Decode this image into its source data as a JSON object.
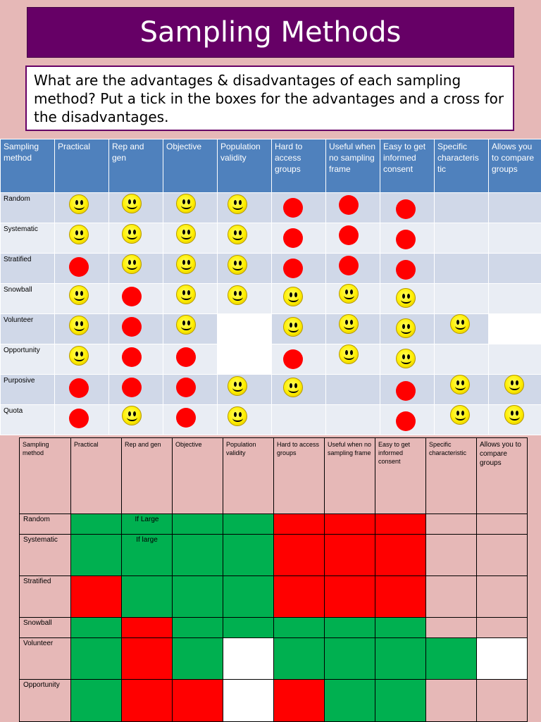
{
  "title": "Sampling Methods",
  "instructions": "What are the advantages & disadvantages of each sampling method? Put a tick in the boxes for the advantages and a cross for the disadvantages.",
  "table1": {
    "headers": [
      "Sampling method",
      "Practical",
      "Rep and gen",
      "Objective",
      "Population validity",
      "Hard to access groups",
      "Useful when no sampling frame",
      "Easy to get informed consent",
      "Specific characteris tic",
      "Allows you to compare groups"
    ],
    "rows": [
      {
        "label": "Random",
        "cells": [
          "smiley",
          "smiley",
          "smiley",
          "smiley",
          "dot",
          "dot",
          "dot",
          "",
          ""
        ]
      },
      {
        "label": "Systematic",
        "cells": [
          "smiley",
          "smiley",
          "smiley",
          "smiley",
          "dot",
          "dot",
          "dot",
          "",
          ""
        ]
      },
      {
        "label": "Stratified",
        "cells": [
          "dot",
          "smiley",
          "smiley",
          "smiley",
          "dot",
          "dot",
          "dot",
          "",
          ""
        ]
      },
      {
        "label": "Snowball",
        "cells": [
          "smiley",
          "dot",
          "smiley",
          "smiley",
          "smiley",
          "smiley",
          "smiley",
          "",
          ""
        ]
      },
      {
        "label": "Volunteer",
        "cells": [
          "smiley",
          "dot",
          "smiley",
          "blank",
          "smiley",
          "smiley",
          "smiley",
          "smiley",
          "blank"
        ]
      },
      {
        "label": "Opportunity",
        "cells": [
          "smiley",
          "dot",
          "dot",
          "blank",
          "dot",
          "smiley",
          "smiley",
          "",
          ""
        ]
      },
      {
        "label": "Purposive",
        "cells": [
          "dot",
          "dot",
          "dot",
          "smiley",
          "smiley",
          "",
          "dot",
          "smiley",
          "smiley"
        ]
      },
      {
        "label": "Quota",
        "cells": [
          "dot",
          "smiley",
          "dot",
          "smiley",
          "",
          "",
          "dot",
          "smiley",
          "smiley"
        ]
      }
    ]
  },
  "table2": {
    "headers": [
      "Sampling method",
      "Practical",
      "Rep and gen",
      "Objective",
      "Population validity",
      "Hard to access groups",
      "Useful when no sampling frame",
      "Easy to get informed consent",
      "Specific characteristic",
      "Allows you to compare groups"
    ],
    "rows": [
      {
        "label": "Random",
        "cells": [
          {
            "c": "g"
          },
          {
            "c": "g",
            "t": "If Large"
          },
          {
            "c": "g"
          },
          {
            "c": "g"
          },
          {
            "c": "r"
          },
          {
            "c": "r"
          },
          {
            "c": "r"
          },
          {
            "c": "p"
          },
          {
            "c": "p"
          }
        ]
      },
      {
        "label": "Systematic",
        "cells": [
          {
            "c": "g"
          },
          {
            "c": "g",
            "t": "If large"
          },
          {
            "c": "g"
          },
          {
            "c": "g"
          },
          {
            "c": "r"
          },
          {
            "c": "r"
          },
          {
            "c": "r"
          },
          {
            "c": "p"
          },
          {
            "c": "p"
          }
        ]
      },
      {
        "label": "Stratified",
        "cells": [
          {
            "c": "r"
          },
          {
            "c": "g"
          },
          {
            "c": "g"
          },
          {
            "c": "g"
          },
          {
            "c": "r"
          },
          {
            "c": "r"
          },
          {
            "c": "r"
          },
          {
            "c": "p"
          },
          {
            "c": "p"
          }
        ]
      },
      {
        "label": "Snowball",
        "cells": [
          {
            "c": "g"
          },
          {
            "c": "r"
          },
          {
            "c": "g"
          },
          {
            "c": "g"
          },
          {
            "c": "g"
          },
          {
            "c": "g"
          },
          {
            "c": "g"
          },
          {
            "c": "p"
          },
          {
            "c": "p"
          }
        ]
      },
      {
        "label": "Volunteer",
        "cells": [
          {
            "c": "g"
          },
          {
            "c": "r"
          },
          {
            "c": "g"
          },
          {
            "c": "w"
          },
          {
            "c": "g"
          },
          {
            "c": "g"
          },
          {
            "c": "g"
          },
          {
            "c": "g"
          },
          {
            "c": "w"
          }
        ]
      },
      {
        "label": "Opportunity",
        "cells": [
          {
            "c": "g"
          },
          {
            "c": "r"
          },
          {
            "c": "r"
          },
          {
            "c": "w"
          },
          {
            "c": "r"
          },
          {
            "c": "g"
          },
          {
            "c": "g"
          },
          {
            "c": "p"
          },
          {
            "c": "p"
          }
        ]
      }
    ]
  },
  "colors": {
    "title_bg": "#660066",
    "header_blue": "#4f81bd",
    "advantage": "#00b050",
    "disadvantage": "#ff0000",
    "smiley": "#ffee00",
    "page_bg": "#e6b8b7"
  }
}
